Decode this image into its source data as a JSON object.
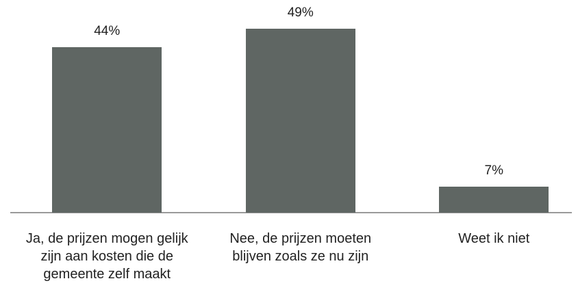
{
  "chart_data": {
    "type": "bar",
    "categories": [
      "Ja, de prijzen mogen gelijk zijn aan kosten die de gemeente zelf maakt",
      "Nee, de prijzen moeten blijven zoals ze nu zijn",
      "Weet ik niet"
    ],
    "values": [
      44,
      49,
      7
    ],
    "value_labels": [
      "44%",
      "49%",
      "7%"
    ],
    "color": "#5f6663",
    "ylim": [
      0,
      55
    ]
  }
}
